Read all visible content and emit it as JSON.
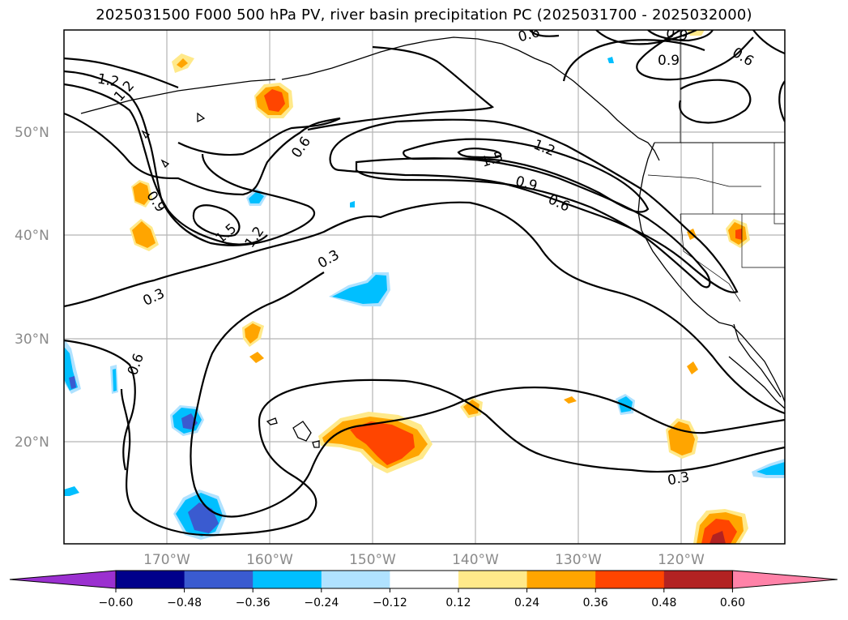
{
  "title": "2025031500 F000 500 hPa PV, river basin precipitation PC (2025031700 - 2025032000)",
  "map": {
    "lat_labels": [
      "50°N",
      "40°N",
      "30°N",
      "20°N"
    ],
    "lon_labels": [
      "170°W",
      "160°W",
      "150°W",
      "140°W",
      "130°W",
      "120°W"
    ],
    "contour_labels": [
      "1.2",
      "0.6",
      "0.9",
      "1.2",
      "0.9",
      "0.6",
      "0.6",
      "1.5",
      "1.2",
      "0.9",
      "0.6",
      "0.9",
      "1.5",
      "1.2",
      "0.3",
      "0.3",
      "0.6",
      "0.3"
    ],
    "pv_contour_levels": [
      0.3,
      0.6,
      0.9,
      1.2,
      1.5
    ]
  },
  "colorbar": {
    "ticks": [
      "−0.60",
      "−0.48",
      "−0.36",
      "−0.24",
      "−0.12",
      "0.12",
      "0.24",
      "0.36",
      "0.48",
      "0.60"
    ],
    "colors": [
      "#9b30d0",
      "#00008b",
      "#3a5bd0",
      "#00bfff",
      "#b0e2ff",
      "#ffffff",
      "#ffe98a",
      "#ffa500",
      "#ff4500",
      "#b22222",
      "#ff82a8"
    ]
  }
}
